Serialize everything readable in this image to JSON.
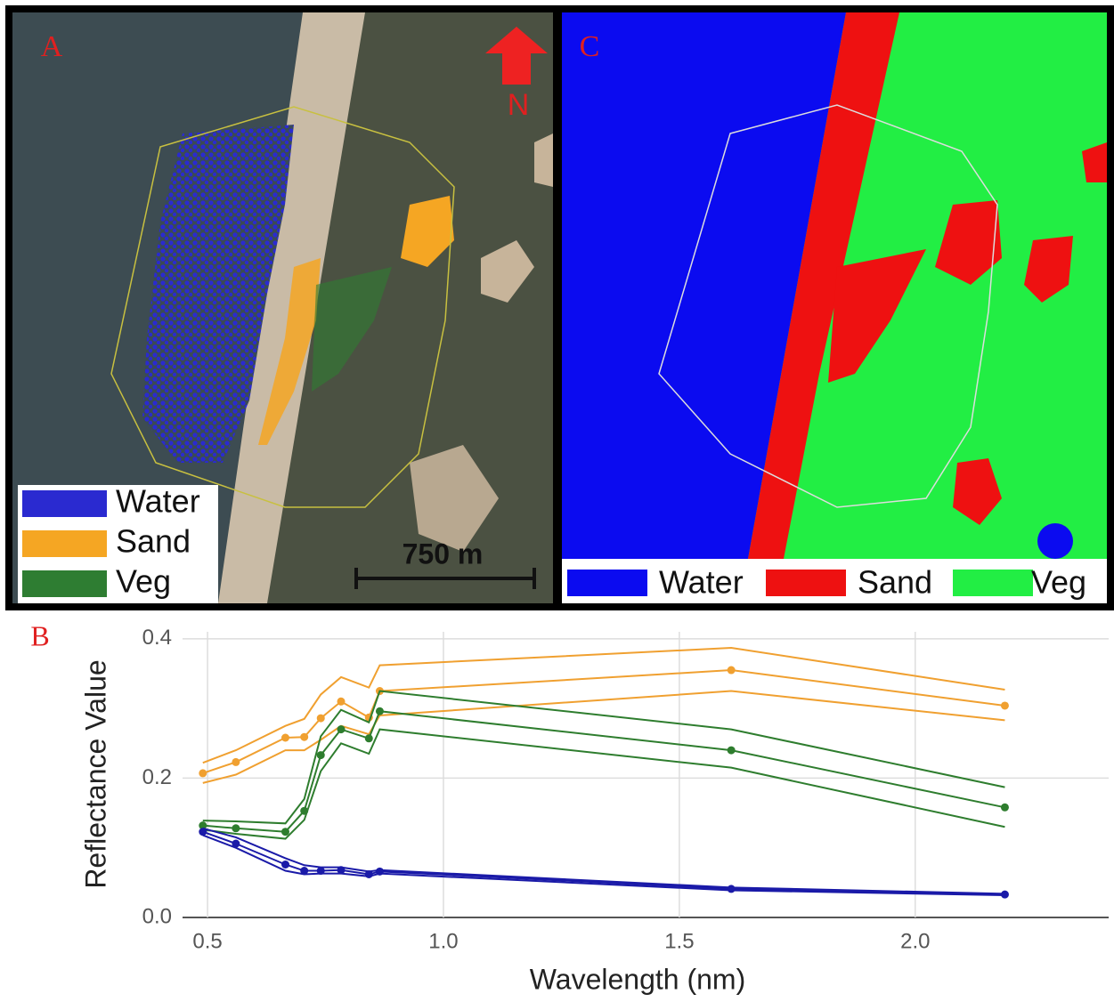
{
  "panels": [
    {
      "label": "A",
      "north": "N",
      "scale": "750 m",
      "legend": [
        {
          "name": "Water",
          "color": "#2a2ad0"
        },
        {
          "name": "Sand",
          "color": "#f5a623"
        },
        {
          "name": "Veg",
          "color": "#2e7d32"
        }
      ]
    },
    {
      "label": "C",
      "legend": [
        {
          "name": "Water",
          "color": "#0b0bf0"
        },
        {
          "name": "Sand",
          "color": "#ee1111"
        },
        {
          "name": "Veg",
          "color": "#22ee44"
        }
      ]
    }
  ],
  "chart_data": {
    "type": "line",
    "title": "B",
    "x_label": "Wavelength (nm)",
    "y_label": "Reflectance Value",
    "x": [
      0.49,
      0.56,
      0.665,
      0.705,
      0.74,
      0.783,
      0.842,
      0.865,
      1.61,
      2.19
    ],
    "series": [
      {
        "color": "#f0a030",
        "markers": true,
        "values": [
          0.207,
          0.223,
          0.258,
          0.259,
          0.286,
          0.31,
          0.287,
          0.325,
          0.355,
          0.304
        ]
      },
      {
        "color": "#f0a030",
        "markers": false,
        "values": [
          0.222,
          0.24,
          0.275,
          0.285,
          0.32,
          0.345,
          0.33,
          0.362,
          0.387,
          0.327
        ]
      },
      {
        "color": "#f0a030",
        "markers": false,
        "values": [
          0.193,
          0.205,
          0.24,
          0.24,
          0.255,
          0.275,
          0.263,
          0.29,
          0.325,
          0.283
        ]
      },
      {
        "color": "#2e7d2e",
        "markers": true,
        "values": [
          0.132,
          0.128,
          0.123,
          0.153,
          0.233,
          0.27,
          0.257,
          0.296,
          0.24,
          0.158
        ]
      },
      {
        "color": "#2e7d2e",
        "markers": false,
        "values": [
          0.139,
          0.138,
          0.135,
          0.17,
          0.26,
          0.298,
          0.28,
          0.325,
          0.27,
          0.187
        ]
      },
      {
        "color": "#2e7d2e",
        "markers": false,
        "values": [
          0.126,
          0.12,
          0.113,
          0.14,
          0.21,
          0.25,
          0.235,
          0.27,
          0.215,
          0.13
        ]
      },
      {
        "color": "#1a1aa8",
        "markers": true,
        "values": [
          0.123,
          0.106,
          0.076,
          0.067,
          0.067,
          0.068,
          0.062,
          0.066,
          0.041,
          0.033
        ]
      },
      {
        "color": "#1a1aa8",
        "markers": false,
        "values": [
          0.128,
          0.115,
          0.085,
          0.075,
          0.072,
          0.072,
          0.066,
          0.068,
          0.043,
          0.034
        ]
      },
      {
        "color": "#1a1aa8",
        "markers": false,
        "values": [
          0.118,
          0.1,
          0.067,
          0.062,
          0.063,
          0.063,
          0.059,
          0.063,
          0.039,
          0.032
        ]
      }
    ],
    "xlim": [
      0.447,
      2.41
    ],
    "ylim": [
      0,
      0.41
    ],
    "xticks": [
      0.5,
      {
        "value": 1,
        "label": "1.0"
      },
      1.5,
      {
        "value": 2,
        "label": "2.0"
      }
    ],
    "yticks": [
      {
        "value": 0,
        "label": "0.0"
      },
      0.2,
      0.4
    ],
    "grid": true
  }
}
